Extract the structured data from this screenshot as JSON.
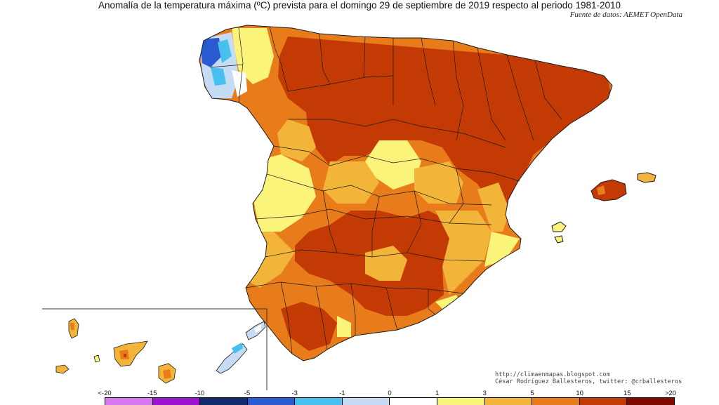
{
  "title": "Anomalía de la temperatura máxima (ºC) prevista para el domingo 29 de septiembre de 2019 respecto al periodo 1981-2010",
  "source": "Fuente de datos: AEMET OpenData",
  "credits": {
    "line1": "http://climaenmapas.blogspot.com",
    "line2": "César Rodríguez Ballesteros, twitter: @crballesteros"
  },
  "legend": {
    "labels": [
      "<-20",
      "-15",
      "-10",
      "-5",
      "-3",
      "-1",
      "0",
      "1",
      "3",
      "5",
      "10",
      "15",
      ">20"
    ],
    "colors": [
      "#d878f0",
      "#9a14d0",
      "#102a6e",
      "#2a5ad0",
      "#48c0ee",
      "#c6dcf4",
      "#ffffff",
      "#fbf47a",
      "#f2b53a",
      "#e87b1a",
      "#c43a05",
      "#7e0a00",
      "#5a3a0a"
    ]
  },
  "map_colors": {
    "sea": "#ffffff",
    "border": "#1a1a1a",
    "very_hot": "#c43a05",
    "hot": "#e87b1a",
    "warm": "#f2b53a",
    "mild": "#fbf47a",
    "neutral": "#ffffff",
    "cool": "#c6dcf4",
    "cold": "#2a5ad0",
    "colder": "#48c0ee"
  }
}
